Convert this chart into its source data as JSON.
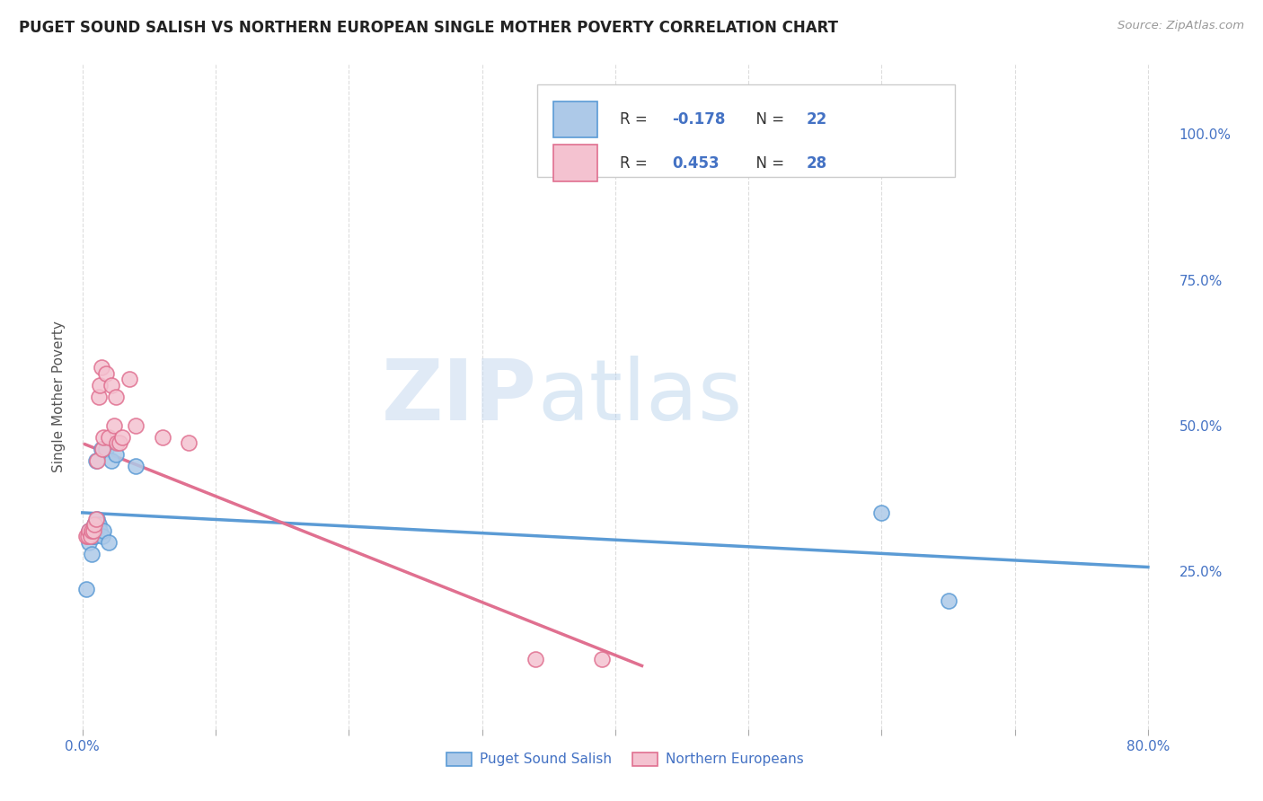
{
  "title": "PUGET SOUND SALISH VS NORTHERN EUROPEAN SINGLE MOTHER POVERTY CORRELATION CHART",
  "source": "Source: ZipAtlas.com",
  "ylabel": "Single Mother Poverty",
  "xlim": [
    -0.005,
    0.82
  ],
  "ylim": [
    -0.02,
    1.12
  ],
  "xticks": [
    0.0,
    0.1,
    0.2,
    0.3,
    0.4,
    0.5,
    0.6,
    0.7,
    0.8
  ],
  "xticklabels": [
    "0.0%",
    "",
    "",
    "",
    "",
    "",
    "",
    "",
    "80.0%"
  ],
  "yticks_right": [
    0.25,
    0.5,
    0.75,
    1.0
  ],
  "ytick_right_labels": [
    "25.0%",
    "50.0%",
    "75.0%",
    "100.0%"
  ],
  "R_salish": -0.178,
  "N_salish": 22,
  "R_northern": 0.453,
  "N_northern": 28,
  "salish_color": "#adc9e8",
  "salish_edge_color": "#5b9bd5",
  "northern_color": "#f4c2d0",
  "northern_edge_color": "#e07090",
  "salish_trendline_color": "#5b9bd5",
  "northern_trendline_color": "#e07090",
  "salish_x": [
    0.003,
    0.005,
    0.005,
    0.007,
    0.008,
    0.009,
    0.009,
    0.01,
    0.01,
    0.011,
    0.012,
    0.013,
    0.014,
    0.015,
    0.016,
    0.018,
    0.02,
    0.022,
    0.025,
    0.04,
    0.6,
    0.65
  ],
  "salish_y": [
    0.22,
    0.3,
    0.32,
    0.28,
    0.31,
    0.31,
    0.33,
    0.32,
    0.44,
    0.34,
    0.33,
    0.32,
    0.46,
    0.31,
    0.32,
    0.46,
    0.3,
    0.44,
    0.45,
    0.43,
    0.35,
    0.2
  ],
  "northern_x": [
    0.003,
    0.004,
    0.005,
    0.006,
    0.007,
    0.008,
    0.009,
    0.01,
    0.011,
    0.012,
    0.013,
    0.014,
    0.015,
    0.016,
    0.018,
    0.02,
    0.022,
    0.024,
    0.025,
    0.026,
    0.028,
    0.03,
    0.035,
    0.04,
    0.06,
    0.08,
    0.34,
    0.39
  ],
  "northern_y": [
    0.31,
    0.31,
    0.32,
    0.31,
    0.32,
    0.32,
    0.33,
    0.34,
    0.44,
    0.55,
    0.57,
    0.6,
    0.46,
    0.48,
    0.59,
    0.48,
    0.57,
    0.5,
    0.55,
    0.47,
    0.47,
    0.48,
    0.58,
    0.5,
    0.48,
    0.47,
    0.1,
    0.1
  ],
  "watermark_zip": "ZIP",
  "watermark_atlas": "atlas",
  "background_color": "#ffffff",
  "grid_color": "#dddddd",
  "legend_text_color": "#4472c4",
  "legend_label_color": "#333333"
}
